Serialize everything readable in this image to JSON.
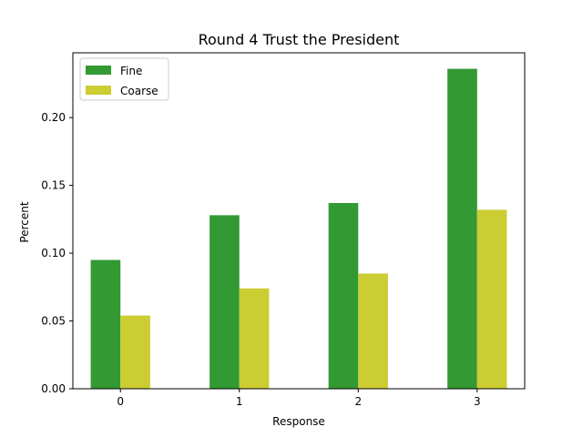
{
  "chart_data": {
    "type": "bar",
    "title": "Round 4 Trust the President",
    "xlabel": "Response",
    "ylabel": "Percent",
    "categories": [
      "0",
      "1",
      "2",
      "3"
    ],
    "series": [
      {
        "name": "Fine",
        "color": "#339933",
        "values": [
          0.095,
          0.128,
          0.137,
          0.236
        ]
      },
      {
        "name": "Coarse",
        "color": "#cccc33",
        "values": [
          0.054,
          0.074,
          0.085,
          0.132
        ]
      }
    ],
    "ylim": [
      0,
      0.2478
    ],
    "yticks": [
      "0.00",
      "0.05",
      "0.10",
      "0.15",
      "0.20"
    ],
    "grid": false,
    "legend_position": "top-left"
  }
}
